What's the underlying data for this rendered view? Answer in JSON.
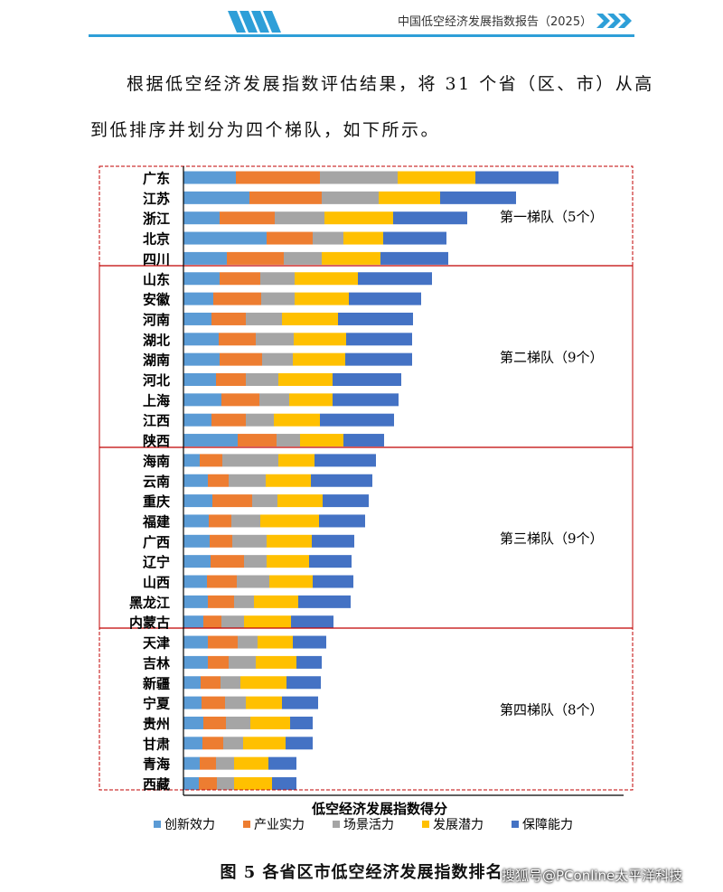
{
  "header": {
    "title": "中国低空经济发展指数报告（2025）"
  },
  "body_text": {
    "line1": "根据低空经济发展指数评估结果，将 31 个省（区、市）从高",
    "line2": "到低排序并划分为四个梯队，如下所示。"
  },
  "caption": "图 5  各省区市低空经济发展指数排名",
  "watermark": "搜狐号@PConline太平洋科技",
  "colors": {
    "innovation": "#5b9bd5",
    "industry": "#ed7d31",
    "scene": "#a5a5a5",
    "potential": "#ffc000",
    "support": "#4472c4",
    "tier_box": "#c00000",
    "header_bar": "#2e9fd8"
  },
  "chart_data": {
    "type": "bar",
    "orientation": "horizontal",
    "stacked": true,
    "xlabel": "低空经济发展指数得分",
    "legend_position": "bottom",
    "categories": [
      "广东",
      "江苏",
      "浙江",
      "北京",
      "四川",
      "山东",
      "安徽",
      "河南",
      "湖北",
      "湖南",
      "河北",
      "上海",
      "江西",
      "陕西",
      "海南",
      "云南",
      "重庆",
      "福建",
      "广西",
      "辽宁",
      "山西",
      "黑龙江",
      "内蒙古",
      "天津",
      "吉林",
      "新疆",
      "宁夏",
      "贵州",
      "甘肃",
      "青海",
      "西藏"
    ],
    "series": [
      {
        "name": "创新效力",
        "values": [
          58,
          73,
          40,
          92,
          48,
          40,
          33,
          31,
          39,
          40,
          36,
          42,
          31,
          60,
          18,
          27,
          32,
          28,
          29,
          30,
          26,
          27,
          22,
          27,
          27,
          19,
          20,
          22,
          21,
          18,
          17
        ]
      },
      {
        "name": "产业实力",
        "values": [
          93,
          80,
          61,
          51,
          63,
          45,
          53,
          38,
          41,
          47,
          33,
          42,
          38,
          43,
          25,
          23,
          44,
          25,
          25,
          37,
          33,
          29,
          20,
          33,
          23,
          22,
          26,
          25,
          23,
          18,
          20
        ]
      },
      {
        "name": "场景活力",
        "values": [
          86,
          63,
          55,
          34,
          42,
          38,
          37,
          40,
          42,
          34,
          36,
          33,
          31,
          26,
          62,
          41,
          28,
          32,
          38,
          25,
          36,
          22,
          25,
          22,
          30,
          22,
          23,
          27,
          22,
          20,
          19
        ]
      },
      {
        "name": "发展潜力",
        "values": [
          86,
          68,
          76,
          44,
          65,
          70,
          60,
          62,
          58,
          58,
          60,
          48,
          51,
          48,
          40,
          50,
          50,
          65,
          50,
          47,
          48,
          49,
          52,
          39,
          45,
          51,
          40,
          44,
          47,
          38,
          42
        ]
      },
      {
        "name": "保障能力",
        "values": [
          92,
          84,
          82,
          70,
          75,
          82,
          80,
          83,
          73,
          74,
          76,
          73,
          82,
          45,
          68,
          68,
          51,
          51,
          47,
          47,
          45,
          58,
          47,
          37,
          28,
          38,
          40,
          25,
          30,
          31,
          27
        ]
      }
    ],
    "tiers": [
      {
        "label": "第一梯队（5个）",
        "count": 5
      },
      {
        "label": "第二梯队（9个）",
        "count": 9
      },
      {
        "label": "第三梯队（9个）",
        "count": 9
      },
      {
        "label": "第四梯队（8个）",
        "count": 8
      }
    ]
  }
}
